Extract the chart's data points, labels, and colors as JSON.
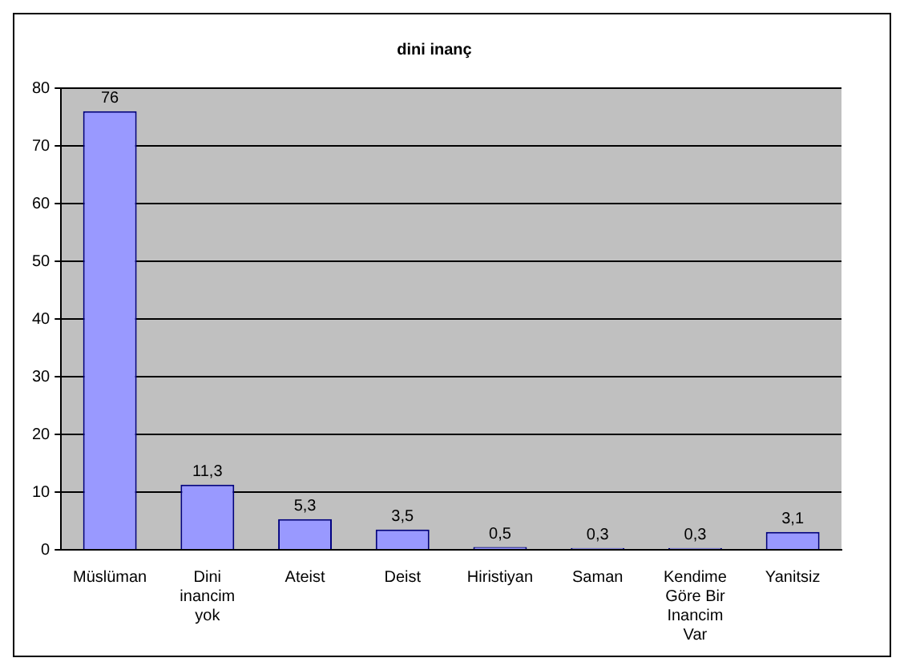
{
  "chart_data": {
    "type": "bar",
    "title": "dini inanç",
    "categories": [
      "Müslüman",
      "Dini inancim yok",
      "Ateist",
      "Deist",
      "Hiristiyan",
      "Saman",
      "Kendime Göre Bir Inancim Var",
      "Yanitsiz"
    ],
    "values": [
      76,
      11.3,
      5.3,
      3.5,
      0.5,
      0.3,
      0.3,
      3.1
    ],
    "value_labels": [
      "76",
      "11,3",
      "5,3",
      "3,5",
      "0,5",
      "0,3",
      "0,3",
      "3,1"
    ],
    "color": "#9999ff",
    "ylim": [
      0,
      80
    ],
    "yticks": [
      0,
      10,
      20,
      30,
      40,
      50,
      60,
      70,
      80
    ],
    "grid": "y",
    "legend": false
  }
}
